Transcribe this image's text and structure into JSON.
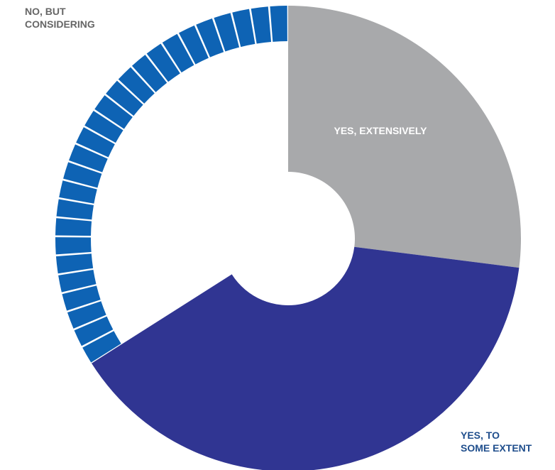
{
  "chart_data": {
    "type": "pie",
    "title": "",
    "slices": [
      {
        "label": "YES, EXTENSIVELY",
        "value": 27,
        "color": "#a8a9ab",
        "pattern": "solid"
      },
      {
        "label": "YES, TO SOME EXTENT",
        "value": 39,
        "color": "#303592",
        "pattern": "solid"
      },
      {
        "label": "NO, BUT CONSIDERING",
        "value": 34,
        "color": "#0e63b4",
        "pattern": "segmented-ring"
      }
    ],
    "legend": "none"
  }
}
